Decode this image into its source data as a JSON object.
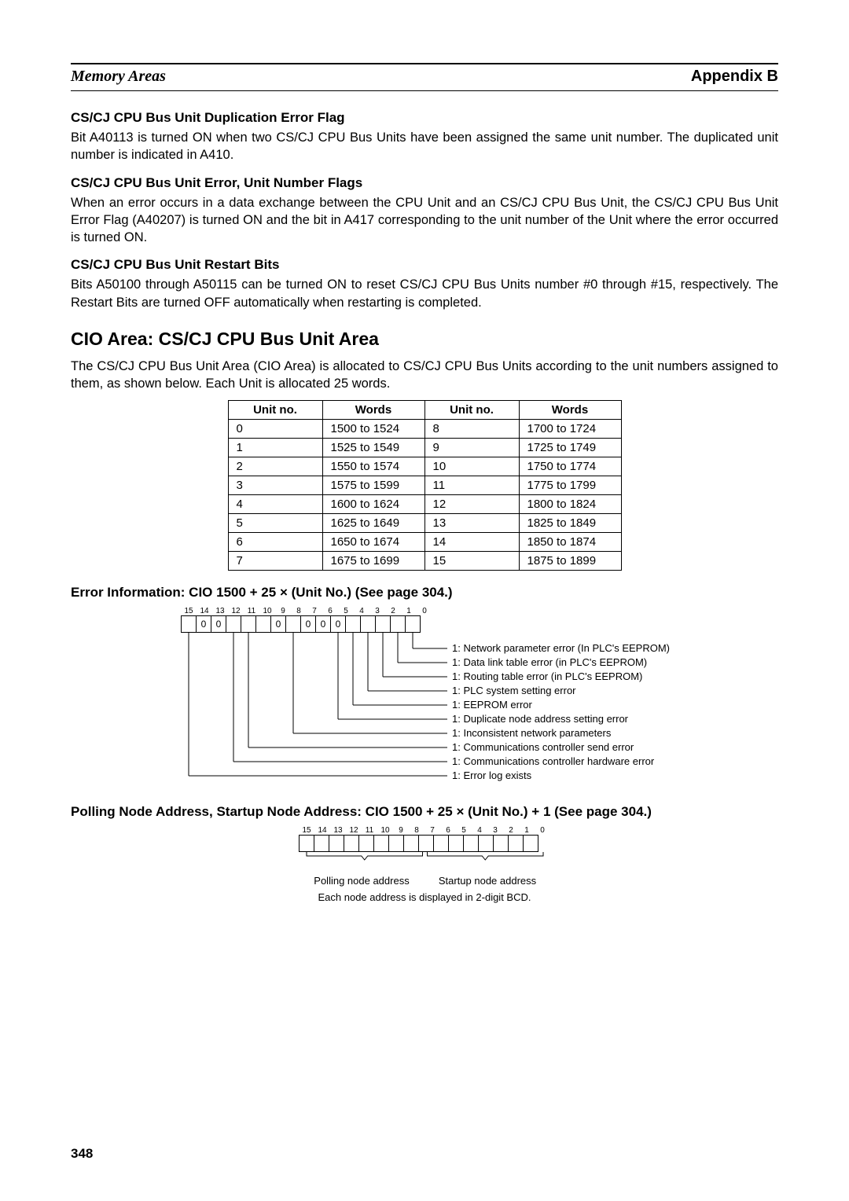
{
  "header": {
    "left": "Memory Areas",
    "right": "Appendix B"
  },
  "sections": {
    "dup_flag": {
      "title": "CS/CJ CPU Bus Unit Duplication Error Flag",
      "body": "Bit A40113 is turned ON when two CS/CJ CPU Bus Units have been assigned the same unit number. The duplicated unit number is indicated in A410."
    },
    "err_flags": {
      "title": "CS/CJ CPU Bus Unit Error, Unit Number Flags",
      "body": "When an error occurs in a data exchange between the CPU Unit and an CS/CJ CPU Bus Unit, the CS/CJ CPU Bus Unit Error Flag (A40207) is turned ON and the bit in A417 corresponding to the unit number of the Unit where the error occurred is turned ON."
    },
    "restart": {
      "title": "CS/CJ CPU Bus Unit Restart Bits",
      "body": "Bits A50100 through A50115 can be turned ON to reset CS/CJ CPU Bus Units number #0 through #15, respectively. The Restart Bits are turned OFF automatically when restarting is completed."
    },
    "cio_area": {
      "title": "CIO Area: CS/CJ CPU Bus Unit Area",
      "body": "The CS/CJ CPU Bus Unit Area (CIO Area) is allocated to CS/CJ CPU Bus Units according to the unit numbers assigned to them, as shown below. Each Unit is allocated 25 words."
    },
    "error_info": {
      "title": "Error Information: CIO 1500 + 25 × (Unit No.) (See page 304.)"
    },
    "polling": {
      "title": "Polling Node Address, Startup Node Address: CIO 1500 + 25 × (Unit No.) + 1 (See page 304.)"
    }
  },
  "unit_table": {
    "headers": [
      "Unit no.",
      "Words",
      "Unit no.",
      "Words"
    ],
    "rows": [
      [
        "0",
        "1500 to 1524",
        "8",
        "1700 to 1724"
      ],
      [
        "1",
        "1525 to 1549",
        "9",
        "1725 to 1749"
      ],
      [
        "2",
        "1550 to 1574",
        "10",
        "1750 to 1774"
      ],
      [
        "3",
        "1575 to 1599",
        "11",
        "1775 to 1799"
      ],
      [
        "4",
        "1600 to 1624",
        "12",
        "1800 to 1824"
      ],
      [
        "5",
        "1625 to 1649",
        "13",
        "1825 to 1849"
      ],
      [
        "6",
        "1650 to 1674",
        "14",
        "1850 to 1874"
      ],
      [
        "7",
        "1675 to 1699",
        "15",
        "1875 to 1899"
      ]
    ]
  },
  "diagram1": {
    "bit_numbers": [
      "15",
      "14",
      "13",
      "12",
      "11",
      "10",
      "9",
      "8",
      "7",
      "6",
      "5",
      "4",
      "3",
      "2",
      "1",
      "0"
    ],
    "bit_values": [
      "",
      "0",
      "0",
      "",
      "",
      "",
      "0",
      "",
      "0",
      "0",
      "0",
      "",
      "",
      "",
      "",
      ""
    ],
    "labels": [
      "1:  Network parameter error (In PLC's EEPROM)",
      "1:  Data link table error (in PLC's EEPROM)",
      "1:  Routing table error (in PLC's EEPROM)",
      "1:  PLC system setting error",
      "1:  EEPROM error",
      "1:  Duplicate node address setting error",
      "1:  Inconsistent network parameters",
      "1:  Communications controller send error",
      "1:  Communications controller hardware error",
      "1:  Error log exists"
    ],
    "line_color": "#000000"
  },
  "diagram2": {
    "bit_numbers": [
      "15",
      "14",
      "13",
      "12",
      "11",
      "10",
      "9",
      "8",
      "7",
      "6",
      "5",
      "4",
      "3",
      "2",
      "1",
      "0"
    ],
    "left_label": "Polling node address",
    "right_label": "Startup node address",
    "caption": "Each node address is displayed in 2-digit BCD."
  },
  "page_number": "348"
}
